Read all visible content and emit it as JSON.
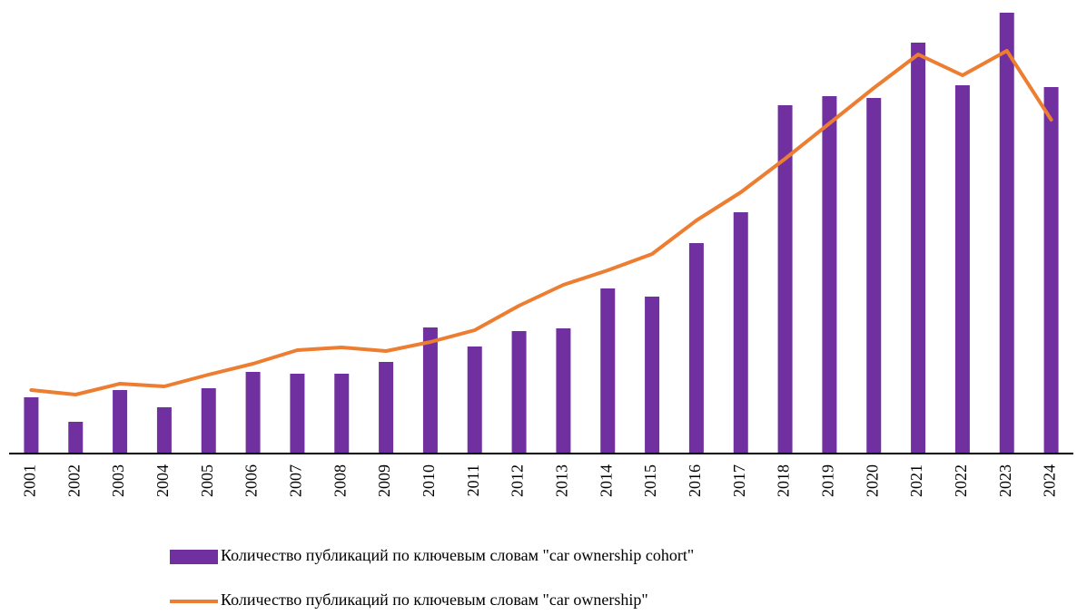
{
  "chart_data": {
    "type": "bar",
    "categories": [
      "2001",
      "2002",
      "2003",
      "2004",
      "2005",
      "2006",
      "2007",
      "2008",
      "2009",
      "2010",
      "2011",
      "2012",
      "2013",
      "2014",
      "2015",
      "2016",
      "2017",
      "2018",
      "2019",
      "2020",
      "2021",
      "2022",
      "2023",
      "2024"
    ],
    "series": [
      {
        "name": "Количество публикаций по ключевым словам \"car ownership cohort\"",
        "type": "bar",
        "color": "#7030a0",
        "values": [
          62,
          35,
          70,
          51,
          72,
          90,
          88,
          88,
          101,
          139,
          118,
          135,
          138,
          182,
          173,
          232,
          266,
          384,
          394,
          392,
          453,
          406,
          486,
          404
        ]
      },
      {
        "name": "Количество публикаций по ключевым словам \"car ownership\"",
        "type": "line",
        "color": "#ed7d31",
        "values": [
          70,
          65,
          77,
          74,
          87,
          99,
          114,
          117,
          113,
          123,
          136,
          163,
          186,
          202,
          220,
          257,
          288,
          325,
          364,
          403,
          440,
          417,
          444,
          368
        ]
      }
    ],
    "ylim": [
      0,
      490
    ]
  }
}
